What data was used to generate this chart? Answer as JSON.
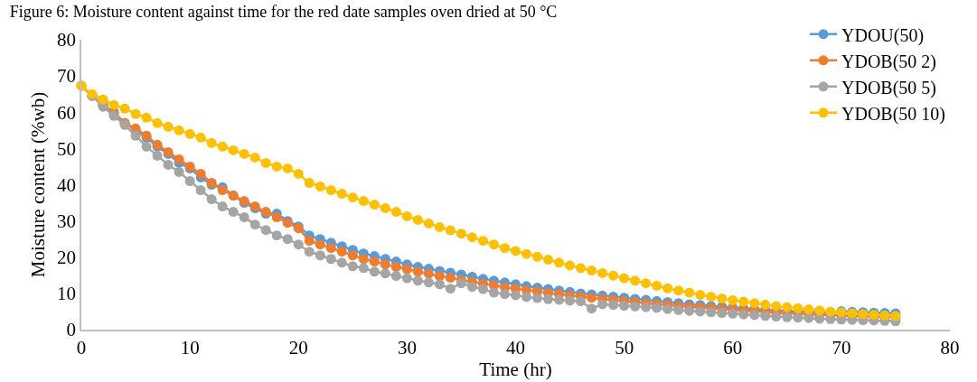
{
  "chart_data": {
    "type": "line",
    "title": "Figure 6: Moisture content against time for the red date samples oven dried at 50 °C",
    "xlabel": "Time (hr)",
    "ylabel": "Moisture content (%wb)",
    "x": [
      0,
      1,
      2,
      3,
      4,
      5,
      6,
      7,
      8,
      9,
      10,
      11,
      12,
      13,
      14,
      15,
      16,
      17,
      18,
      19,
      20,
      21,
      22,
      23,
      24,
      25,
      26,
      27,
      28,
      29,
      30,
      31,
      32,
      33,
      34,
      35,
      36,
      37,
      38,
      39,
      40,
      41,
      42,
      43,
      44,
      45,
      46,
      47,
      48,
      49,
      50,
      51,
      52,
      53,
      54,
      55,
      56,
      57,
      58,
      59,
      60,
      61,
      62,
      63,
      64,
      65,
      66,
      67,
      68,
      69,
      70,
      71,
      72,
      73,
      74,
      75
    ],
    "series": [
      {
        "name": "YDOU(50)",
        "color": "#5b9bd5",
        "values": [
          null,
          64.5,
          62,
          60,
          57,
          55,
          53,
          50.5,
          48.5,
          46,
          44.5,
          42,
          40,
          39.3,
          37,
          35,
          33.5,
          32,
          32,
          30,
          28.5,
          26,
          25,
          24,
          23,
          22,
          21,
          20.3,
          19.5,
          18.8,
          18,
          17.3,
          16.8,
          16.2,
          15.7,
          15.2,
          14.6,
          14,
          13.5,
          13,
          12.5,
          12,
          11.6,
          11.2,
          10.8,
          10.4,
          10,
          9.7,
          9.4,
          9.1,
          8.8,
          8.5,
          8.2,
          7.9,
          7.6,
          7.3,
          7,
          6.8,
          6.5,
          6.3,
          6.1,
          5.9,
          5.7,
          5.5,
          5.3,
          5.2,
          5.0,
          4.9,
          4.8,
          4.7,
          5.1,
          4.9,
          4.8,
          4.7,
          4.6,
          4.5
        ]
      },
      {
        "name": "YDOB(50 2)",
        "color": "#ed7d31",
        "values": [
          67.3,
          64.5,
          62,
          59.5,
          57,
          55.5,
          53.5,
          51,
          49,
          47,
          45,
          43,
          40.5,
          38.5,
          37,
          35.5,
          34,
          32.5,
          31,
          29.5,
          28,
          24.5,
          23.5,
          22.5,
          21.5,
          20.5,
          19.5,
          18.8,
          18,
          17.3,
          16.7,
          16,
          15.4,
          14.8,
          14.3,
          13.7,
          13.2,
          12.7,
          12.2,
          11.7,
          11.3,
          10.9,
          10.5,
          10.1,
          9.8,
          9.4,
          9.1,
          8.8,
          8.5,
          8.2,
          7.9,
          7.6,
          7.3,
          7,
          6.8,
          6.5,
          6.3,
          6.1,
          5.9,
          5.7,
          5.5,
          5.3,
          5.1,
          4.9,
          4.7,
          4.5,
          4.4,
          4.2,
          4.1,
          4.0,
          3.9,
          3.8,
          3.7,
          3.6,
          3.5,
          3.4
        ]
      },
      {
        "name": "YDOB(50 5)",
        "color": "#a5a5a5",
        "values": [
          67.3,
          64.5,
          61.5,
          59,
          56.5,
          53.5,
          50.5,
          48,
          45.5,
          43.5,
          41,
          38.5,
          36,
          34,
          32.5,
          31,
          29,
          27.5,
          26,
          25,
          23.5,
          21.5,
          20.5,
          19.5,
          18.5,
          17.5,
          17,
          16,
          15.5,
          14.8,
          14.2,
          13.5,
          13,
          12.5,
          11.3,
          12.8,
          11.8,
          11.2,
          10.2,
          9.8,
          9.5,
          9.0,
          8.7,
          8.4,
          8.2,
          8,
          7.8,
          5.8,
          7,
          6.8,
          6.6,
          6.4,
          6.2,
          6,
          5.7,
          5.4,
          5.2,
          5,
          4.8,
          4.6,
          4.4,
          4.2,
          4,
          3.8,
          3.6,
          3.4,
          3.3,
          3.2,
          3.0,
          2.9,
          2.8,
          2.7,
          2.6,
          2.5,
          2.4,
          2.3
        ]
      },
      {
        "name": "YDOB(50 10)",
        "color": "#ffc000",
        "values": [
          67.3,
          65,
          63.5,
          62,
          61,
          59.5,
          58.5,
          57,
          56,
          55,
          54,
          53,
          51.5,
          50.5,
          49.5,
          48.5,
          47.5,
          46,
          45,
          44.5,
          43,
          40.5,
          39.5,
          38.5,
          37.5,
          36.5,
          35.5,
          34.5,
          33.5,
          32.5,
          31.3,
          30.3,
          29.3,
          28.3,
          27.4,
          26.5,
          25.5,
          24.5,
          23.5,
          22.5,
          21.7,
          20.9,
          20.1,
          19.3,
          18.5,
          17.7,
          17,
          16.3,
          15.6,
          14.9,
          14.2,
          13.5,
          12.8,
          12.1,
          11.4,
          10.8,
          10.2,
          9.6,
          9.1,
          8.6,
          8.1,
          7.7,
          7.3,
          6.9,
          6.5,
          6.2,
          5.9,
          5.6,
          5.3,
          5.0,
          4.8,
          4.5,
          4.3,
          4.1,
          3.9,
          3.8
        ]
      }
    ],
    "xlim": [
      0,
      80
    ],
    "xticks": [
      0,
      10,
      20,
      30,
      40,
      50,
      60,
      70,
      80
    ],
    "ylim": [
      0,
      80
    ],
    "yticks": [
      0,
      10,
      20,
      30,
      40,
      50,
      60,
      70,
      80
    ],
    "grid": false,
    "legend": "top right",
    "marker": "circle",
    "line_style": "solid"
  }
}
